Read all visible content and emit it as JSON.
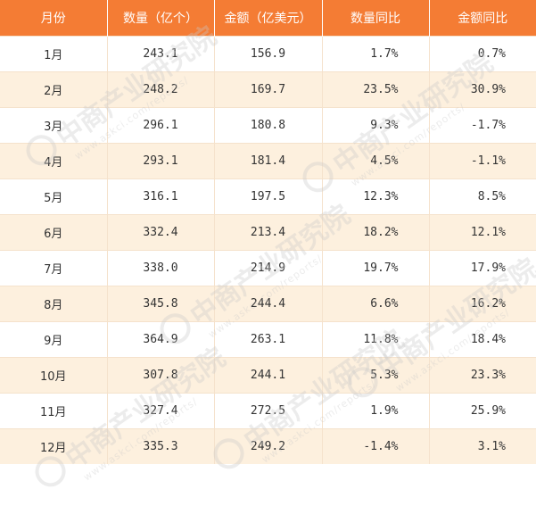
{
  "table": {
    "headers": [
      "月份",
      "数量（亿个）",
      "金额（亿美元）",
      "数量同比",
      "金额同比"
    ],
    "rows": [
      {
        "month": "1月",
        "quantity": "243.1",
        "amount": "156.9",
        "qty_yoy": "1.7%",
        "amt_yoy": "0.7%"
      },
      {
        "month": "2月",
        "quantity": "248.2",
        "amount": "169.7",
        "qty_yoy": "23.5%",
        "amt_yoy": "30.9%"
      },
      {
        "month": "3月",
        "quantity": "296.1",
        "amount": "180.8",
        "qty_yoy": "9.3%",
        "amt_yoy": "-1.7%"
      },
      {
        "month": "4月",
        "quantity": "293.1",
        "amount": "181.4",
        "qty_yoy": "4.5%",
        "amt_yoy": "-1.1%"
      },
      {
        "month": "5月",
        "quantity": "316.1",
        "amount": "197.5",
        "qty_yoy": "12.3%",
        "amt_yoy": "8.5%"
      },
      {
        "month": "6月",
        "quantity": "332.4",
        "amount": "213.4",
        "qty_yoy": "18.2%",
        "amt_yoy": "12.1%"
      },
      {
        "month": "7月",
        "quantity": "338.0",
        "amount": "214.9",
        "qty_yoy": "19.7%",
        "amt_yoy": "17.9%"
      },
      {
        "month": "8月",
        "quantity": "345.8",
        "amount": "244.4",
        "qty_yoy": "6.6%",
        "amt_yoy": "16.2%"
      },
      {
        "month": "9月",
        "quantity": "364.9",
        "amount": "263.1",
        "qty_yoy": "11.8%",
        "amt_yoy": "18.4%"
      },
      {
        "month": "10月",
        "quantity": "307.8",
        "amount": "244.1",
        "qty_yoy": "5.3%",
        "amt_yoy": "23.3%"
      },
      {
        "month": "11月",
        "quantity": "327.4",
        "amount": "272.5",
        "qty_yoy": "1.9%",
        "amt_yoy": "25.9%"
      },
      {
        "month": "12月",
        "quantity": "335.3",
        "amount": "249.2",
        "qty_yoy": "-1.4%",
        "amt_yoy": "3.1%"
      }
    ]
  },
  "watermark": {
    "text": "中商产业研究院",
    "url": "www.askci.com/reports/"
  },
  "colors": {
    "header_bg": "#f47c34",
    "header_text": "#ffffff",
    "row_alt_bg": "#fdf0de",
    "text": "#333333"
  }
}
